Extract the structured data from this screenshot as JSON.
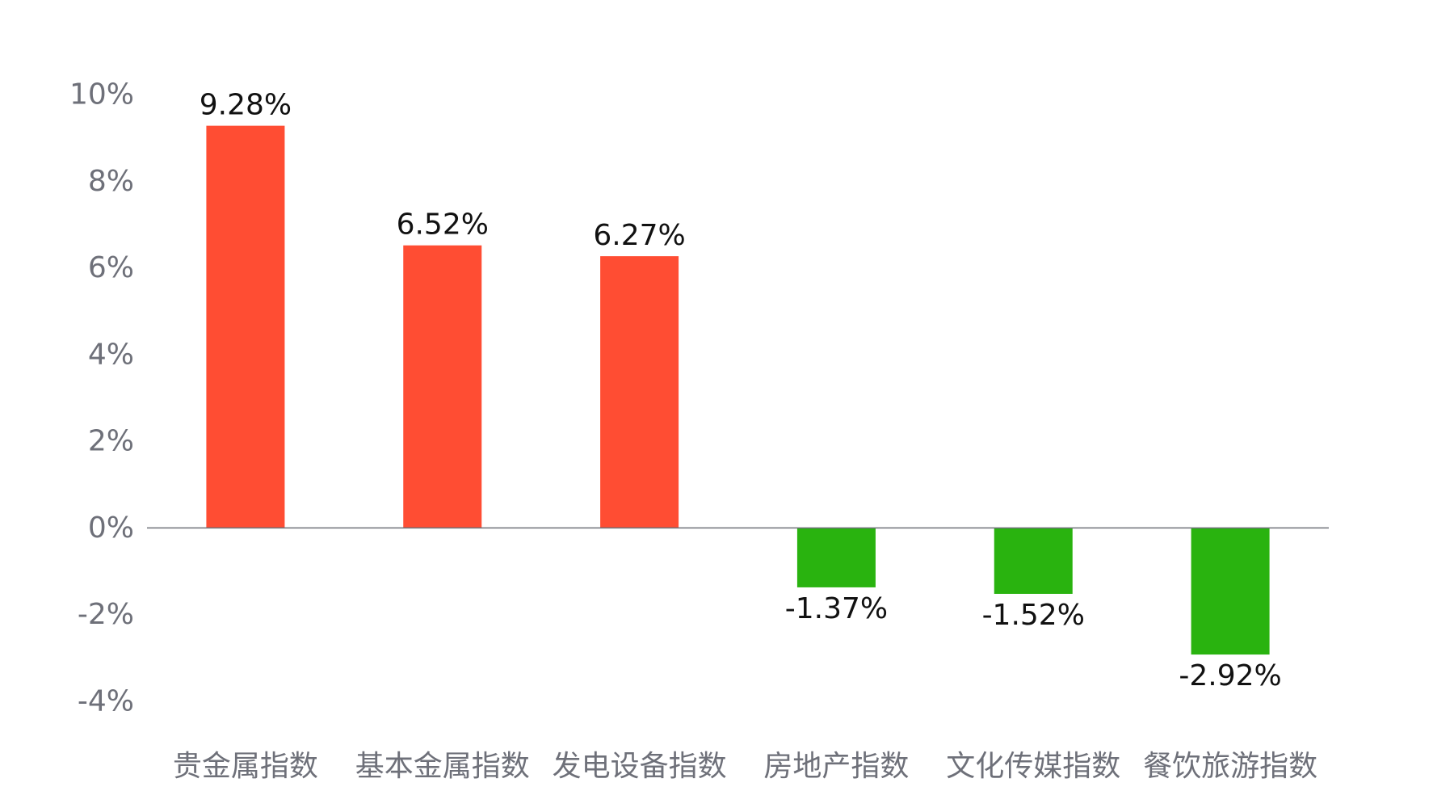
{
  "chart_data": {
    "type": "bar",
    "categories": [
      "贵金属指数",
      "基本金属指数",
      "发电设备指数",
      "房地产指数",
      "文化传媒指数",
      "餐饮旅游指数"
    ],
    "values": [
      9.28,
      6.52,
      6.27,
      -1.37,
      -1.52,
      -2.92
    ],
    "data_labels": [
      "9.28%",
      "6.52%",
      "6.27%",
      "-1.37%",
      "-1.52%",
      "-2.92%"
    ],
    "ylim": [
      -4,
      10
    ],
    "yticks": [
      10,
      8,
      6,
      4,
      2,
      0,
      -2,
      -4
    ],
    "ytick_labels": [
      "10%",
      "8%",
      "6%",
      "4%",
      "2%",
      "0%",
      "-2%",
      "-4%"
    ],
    "grid": false,
    "colors": {
      "positive": "#ff4d33",
      "negative": "#29b30f",
      "axis": "#6e7079",
      "tick_text": "#6e7079",
      "label_text": "#111111"
    }
  }
}
